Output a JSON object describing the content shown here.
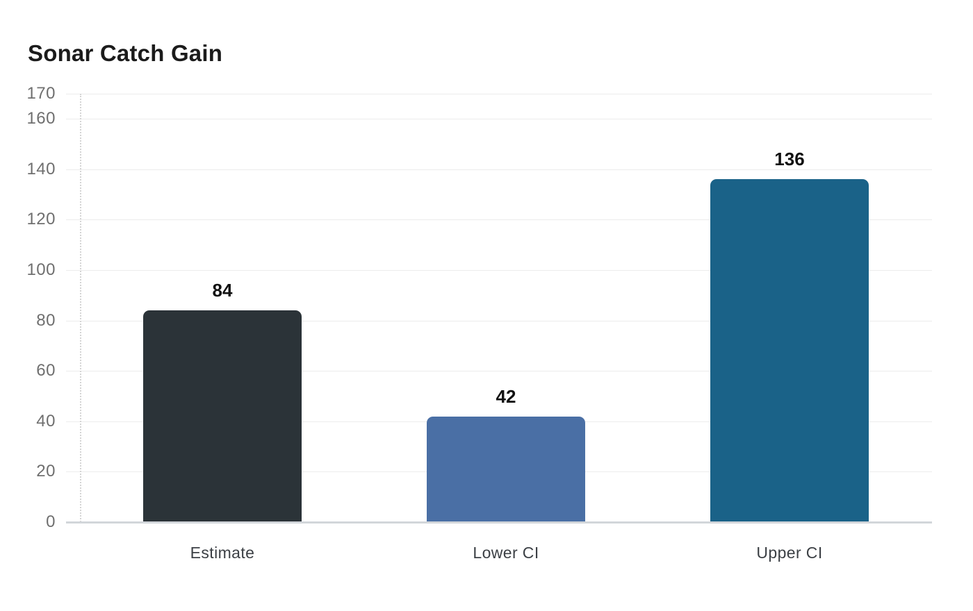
{
  "page": {
    "background": "#ffffff"
  },
  "chart_data": {
    "type": "bar",
    "title": "Sonar Catch Gain",
    "categories": [
      "Estimate",
      "Lower CI",
      "Upper CI"
    ],
    "values": [
      84,
      42,
      136
    ],
    "value_labels": [
      "84",
      "42",
      "136"
    ],
    "bar_colors": [
      "#2b3338",
      "#4a6fa5",
      "#1a6288"
    ],
    "yticks": [
      0,
      20,
      40,
      60,
      80,
      100,
      120,
      140,
      160,
      170
    ],
    "ylim": [
      0,
      170
    ],
    "xlabel": "",
    "ylabel": "",
    "grid": true,
    "legend": "none",
    "colors": {
      "grid": "#ececec",
      "baseline": "#d2d6da",
      "axis_dotted": "#d4d4d4",
      "tick_text": "#6f6f6f",
      "category_text": "#3c4045",
      "value_text": "#111111",
      "title_text": "#1b1b1b"
    }
  }
}
